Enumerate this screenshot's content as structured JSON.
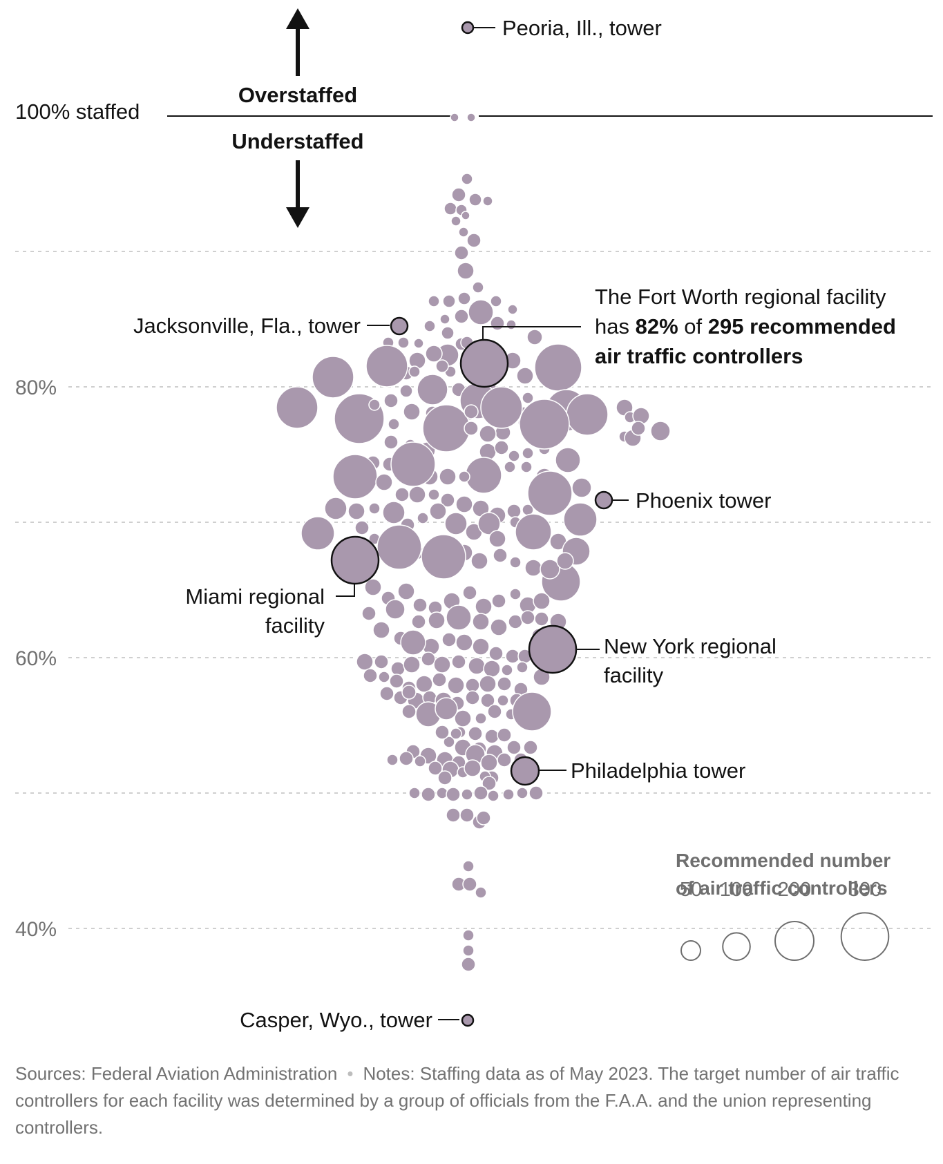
{
  "chart_data": {
    "type": "scatter",
    "description_type": "beeswarm",
    "y_axis": {
      "ticks": [
        {
          "value": 40,
          "label": "40%"
        },
        {
          "value": 60,
          "label": "60%"
        },
        {
          "value": 80,
          "label": "80%"
        }
      ],
      "ylim": [
        34,
        109
      ],
      "reference_value": 100,
      "reference_label": "100% staffed",
      "grid": true
    },
    "direction_labels": {
      "up": "Overstaffed",
      "down": "Understaffed"
    },
    "colors": {
      "bubble": "#a998ad",
      "highlight_stroke": "#121212",
      "grid": "#cfcfcf",
      "reference_line": "#121212"
    },
    "annotations": [
      {
        "id": "peoria",
        "lines": [
          "Peoria, Ill., tower"
        ],
        "y": 106.4,
        "size": 20
      },
      {
        "id": "jacksonville",
        "lines": [
          "Jacksonville, Fla., tower"
        ],
        "y": 84.9,
        "size": 30
      },
      {
        "id": "fort-worth",
        "lines": [
          "The Fort Worth regional facility",
          "has 82% of 295 recommended",
          "air traffic controllers"
        ],
        "y": 82.0,
        "size": 295
      },
      {
        "id": "phoenix",
        "lines": [
          "Phoenix tower"
        ],
        "y": 72.8,
        "size": 30
      },
      {
        "id": "miami",
        "lines": [
          "Miami regional",
          "facility"
        ],
        "y": 68.3,
        "size": 255
      },
      {
        "id": "new-york",
        "lines": [
          "New York regional",
          "facility"
        ],
        "y": 61.8,
        "size": 280
      },
      {
        "id": "philadelphia",
        "lines": [
          "Philadelphia tower"
        ],
        "y": 52.9,
        "size": 105
      },
      {
        "id": "casper",
        "lines": [
          "Casper, Wyo., tower"
        ],
        "y": 32.7,
        "size": 15
      }
    ],
    "fort_worth_rich": {
      "pre": "has ",
      "pct": "82%",
      "mid": " of ",
      "num": "295 recommended",
      "last": "air traffic controllers"
    },
    "legend": {
      "title_lines": [
        "Recommended number",
        "of air traffic controllers"
      ],
      "sizes": [
        50,
        100,
        200,
        300
      ],
      "labels": [
        "50",
        "100",
        "200",
        "300"
      ]
    }
  },
  "footer": {
    "sources": "Sources: Federal Aviation Administration",
    "notes": "Notes: Staffing data as of May 2023. The target number of air traffic controllers for each facility was determined by a group of officials from the F.A.A. and the union representing controllers."
  }
}
